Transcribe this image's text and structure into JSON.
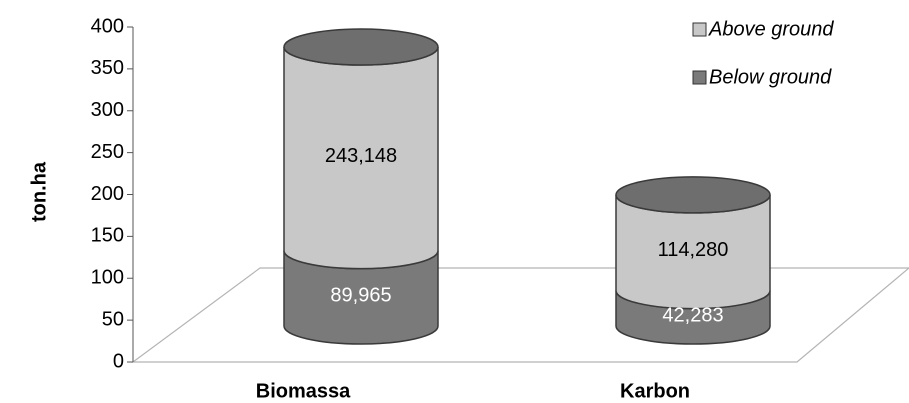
{
  "chart_data": {
    "type": "bar",
    "subtype": "stacked-cylinder-3d",
    "categories": [
      "Biomassa",
      "Karbon"
    ],
    "series": [
      {
        "name": "Below ground",
        "values": [
          89.965,
          42.283
        ],
        "labels": [
          "89,965",
          "42,283"
        ],
        "color": "#7a7a7a"
      },
      {
        "name": "Above ground",
        "values": [
          243.148,
          114.28
        ],
        "labels": [
          "243,148",
          "114,280"
        ],
        "color": "#c8c8c8"
      }
    ],
    "ylabel": "ton.ha",
    "xlabel": "",
    "ylim": [
      0,
      400
    ],
    "yticks": [
      "0",
      "50",
      "100",
      "150",
      "200",
      "250",
      "300",
      "350",
      "400"
    ],
    "legend": "top-right",
    "grid": false
  }
}
